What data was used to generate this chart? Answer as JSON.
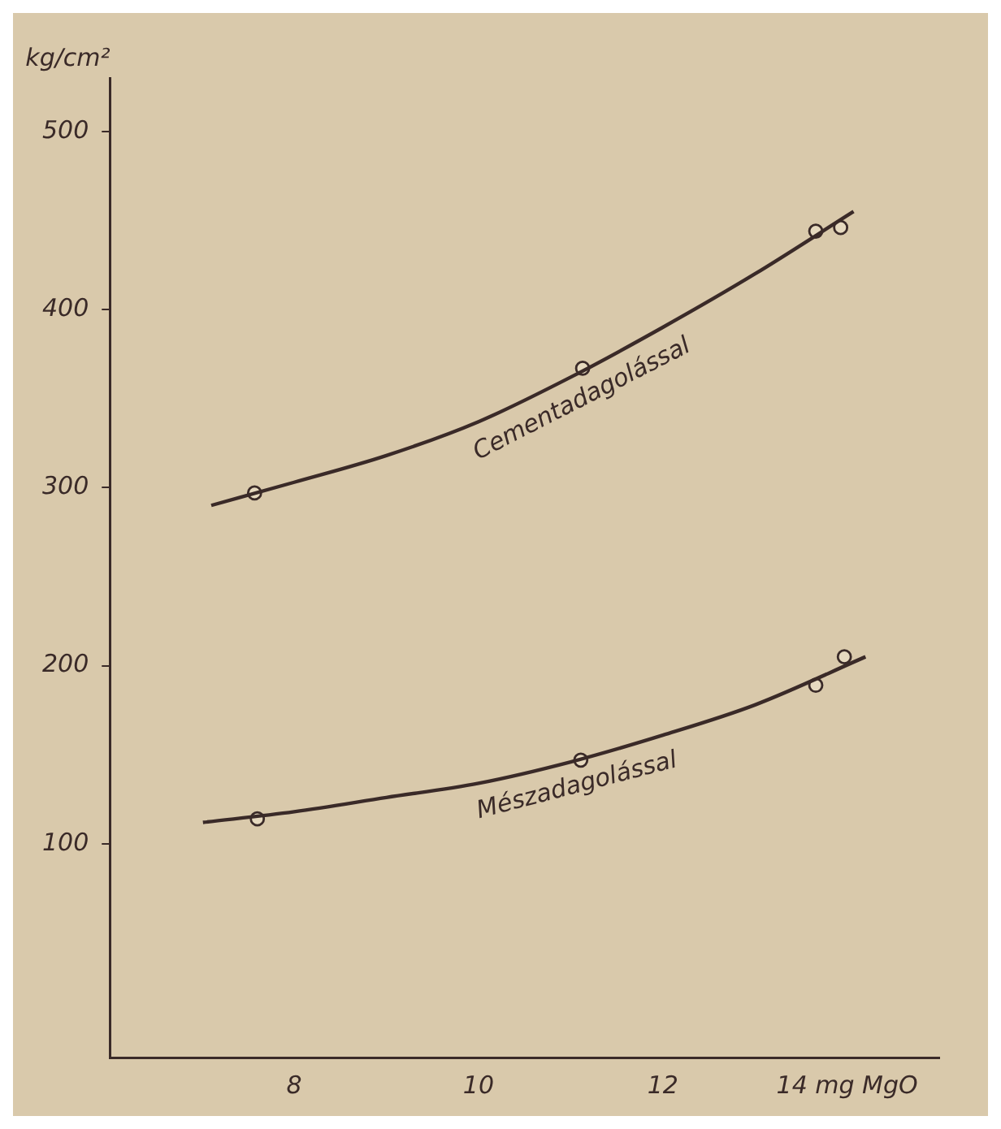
{
  "chart_data": {
    "type": "scatter",
    "ylabel": "kg/cm²",
    "xlim": [
      6,
      15
    ],
    "ylim": [
      -20,
      530
    ],
    "xticks": [
      8,
      10,
      12,
      {
        "value": 14,
        "label": "14 mg MgO"
      }
    ],
    "yticks": [
      100,
      200,
      300,
      400,
      500
    ],
    "grid": false,
    "legend": false,
    "line_style": "solid",
    "series": [
      {
        "type": "line",
        "name": "Cementadagolással",
        "color": "#3a2a28",
        "marker": "none",
        "x": [
          7.1,
          8,
          9,
          10,
          11,
          12,
          13,
          14.07
        ],
        "values": [
          290,
          303,
          318,
          337,
          362,
          390,
          420,
          455
        ]
      },
      {
        "color": "#3a2a28",
        "marker": "circle",
        "x": [
          7.57,
          11.13,
          13.66,
          13.93
        ],
        "values": [
          297,
          367,
          444,
          446
        ]
      },
      {
        "type": "line",
        "name": "Mészadagolással",
        "color": "#3a2a28",
        "marker": "none",
        "x": [
          7.01,
          8,
          9,
          10,
          11,
          12,
          13,
          14.2
        ],
        "values": [
          112,
          118,
          126,
          134,
          146,
          161,
          178,
          205
        ]
      },
      {
        "color": "#3a2a28",
        "marker": "circle",
        "x": [
          7.6,
          11.11,
          13.66,
          13.97
        ],
        "values": [
          114,
          147,
          189,
          205
        ]
      }
    ]
  }
}
